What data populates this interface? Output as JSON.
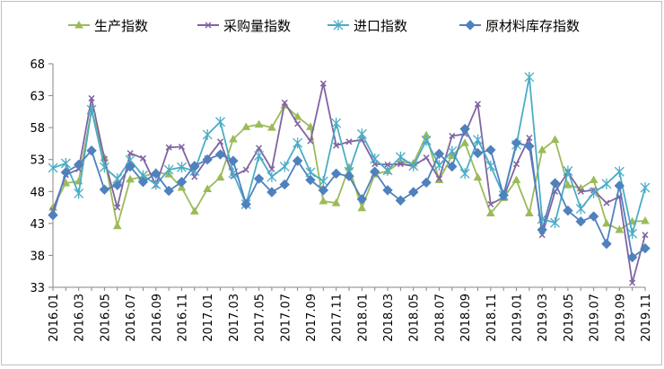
{
  "chart_data": {
    "type": "line",
    "title": "",
    "xlabel": "",
    "ylabel": "",
    "ylim": [
      33,
      68
    ],
    "yticks": [
      33,
      38,
      43,
      48,
      53,
      58,
      63,
      68
    ],
    "grid": false,
    "legend_position": "top",
    "x": [
      "2016.01",
      "2016.02",
      "2016.03",
      "2016.04",
      "2016.05",
      "2016.06",
      "2016.07",
      "2016.08",
      "2016.09",
      "2016.10",
      "2016.11",
      "2016.12",
      "2017.01",
      "2017.02",
      "2017.03",
      "2017.04",
      "2017.05",
      "2017.06",
      "2017.07",
      "2017.08",
      "2017.09",
      "2017.10",
      "2017.11",
      "2017.12",
      "2018.01",
      "2018.02",
      "2018.03",
      "2018.04",
      "2018.05",
      "2018.06",
      "2018.07",
      "2018.08",
      "2018.09",
      "2018.10",
      "2018.11",
      "2018.12",
      "2019.01",
      "2019.02",
      "2019.03",
      "2019.04",
      "2019.05",
      "2019.06",
      "2019.07",
      "2019.08",
      "2019.09",
      "2019.10",
      "2019.11"
    ],
    "xtick_labels": [
      "2016.01",
      "2016.03",
      "2016.05",
      "2016.07",
      "2016.09",
      "2016.11",
      "2017.01",
      "2017.03",
      "2017.05",
      "2017.07",
      "2017.09",
      "2017.11",
      "2018.01",
      "2018.03",
      "2018.05",
      "2018.07",
      "2018.09",
      "2018.11",
      "2019.01",
      "2019.03",
      "2019.05",
      "2019.07",
      "2019.09",
      "2019.11"
    ],
    "series": [
      {
        "name": "生产指数",
        "color": "#9bbb59",
        "marker": "triangle",
        "values": [
          45.5,
          49.3,
          49.6,
          60.8,
          53.3,
          42.6,
          49.9,
          50.3,
          51.0,
          50.7,
          48.6,
          44.9,
          48.4,
          50.2,
          56.2,
          58.1,
          58.5,
          58.0,
          61.5,
          59.7,
          58.1,
          46.5,
          46.2,
          51.8,
          45.4,
          50.7,
          51.2,
          52.6,
          52.4,
          56.8,
          49.8,
          53.6,
          55.6,
          50.2,
          44.6,
          47.0,
          49.8,
          44.6,
          54.5,
          56.1,
          49.0,
          48.5,
          49.8,
          43.0,
          42.0,
          43.3,
          43.4
        ]
      },
      {
        "name": "采购量指数",
        "color": "#8064a2",
        "marker": "x",
        "values": [
          45.0,
          50.6,
          51.5,
          62.6,
          53.1,
          45.5,
          54.0,
          53.2,
          49.0,
          54.9,
          55.0,
          50.3,
          53.2,
          55.8,
          50.4,
          51.4,
          54.8,
          51.5,
          61.9,
          58.6,
          55.9,
          64.9,
          55.2,
          55.8,
          56.1,
          52.3,
          52.2,
          52.3,
          52.0,
          53.3,
          50.0,
          56.7,
          57.0,
          61.7,
          46.0,
          47.1,
          52.3,
          56.4,
          41.2,
          48.0,
          51.0,
          48.0,
          48.2,
          46.2,
          47.2,
          33.7,
          41.2
        ]
      },
      {
        "name": "进口指数",
        "color": "#4bacc6",
        "marker": "asterisk",
        "values": [
          51.7,
          52.4,
          47.7,
          60.8,
          51.8,
          50.0,
          52.9,
          50.5,
          49.1,
          51.4,
          51.8,
          51.2,
          56.9,
          58.9,
          50.9,
          46.0,
          53.6,
          50.3,
          51.9,
          55.6,
          51.0,
          49.6,
          58.7,
          51.1,
          57.0,
          53.1,
          51.3,
          53.4,
          52.0,
          56.0,
          52.1,
          54.3,
          50.8,
          56.1,
          52.0,
          47.4,
          55.3,
          65.9,
          43.7,
          43.1,
          51.2,
          45.3,
          47.8,
          49.2,
          51.1,
          41.4,
          48.6
        ]
      },
      {
        "name": "原材料库存指数",
        "color": "#4f81bd",
        "marker": "diamond",
        "values": [
          44.3,
          51.0,
          52.2,
          54.4,
          48.3,
          49.0,
          51.9,
          49.5,
          50.8,
          48.1,
          49.5,
          52.0,
          53.0,
          53.8,
          52.8,
          46.0,
          50.0,
          47.9,
          49.1,
          52.8,
          49.8,
          48.2,
          50.8,
          50.4,
          46.8,
          51.1,
          48.2,
          46.6,
          47.9,
          49.4,
          53.9,
          51.9,
          57.8,
          54.0,
          54.5,
          47.4,
          55.6,
          55.1,
          42.0,
          49.3,
          45.0,
          43.3,
          44.1,
          39.8,
          48.9,
          37.7,
          39.1
        ]
      }
    ]
  }
}
